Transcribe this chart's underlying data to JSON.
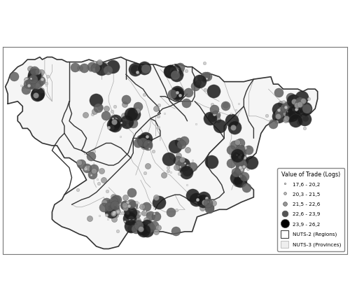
{
  "figsize": [
    5.0,
    4.3
  ],
  "dpi": 100,
  "background_color": "#ffffff",
  "nuts2_edge_color": "#333333",
  "nuts2_linewidth": 1.0,
  "nuts3_edge_color": "#aaaaaa",
  "nuts3_linewidth": 0.5,
  "legend_title": "Value of Trade (Logs)",
  "legend_labels": [
    "17,6 - 20,2",
    "20,3 - 21,5",
    "21,5 - 22,6",
    "22,6 - 23,9",
    "23,9 - 26,2"
  ],
  "legend_colors": [
    "#ffffff",
    "#c8c8c8",
    "#989898",
    "#555555",
    "#000000"
  ],
  "legend_sizes": [
    3,
    5,
    8,
    12,
    17
  ],
  "nuts2_label": "NUTS-2 (Regions)",
  "nuts3_label": "NUTS-3 (Provinces)",
  "xlim": [
    -9.5,
    4.5
  ],
  "ylim": [
    35.8,
    44.2
  ],
  "size_scale": 3.5,
  "frame_color": "#555555",
  "frame_linewidth": 1.0
}
